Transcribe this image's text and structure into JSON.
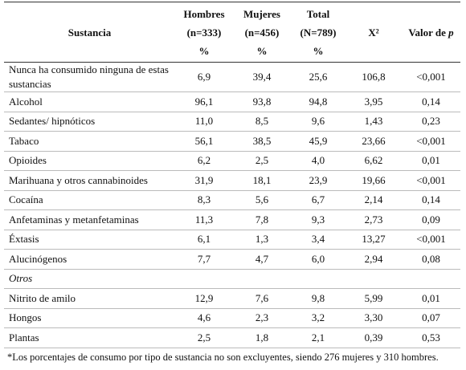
{
  "header": {
    "columns": [
      [
        "Sustancia"
      ],
      [
        "Hombres",
        "(n=333)",
        "%"
      ],
      [
        "Mujeres",
        "(n=456)",
        "%"
      ],
      [
        "Total",
        "(N=789)",
        "%"
      ],
      [
        "X²"
      ],
      [
        "Valor de ",
        "p"
      ]
    ]
  },
  "table": {
    "rows": [
      [
        "Nunca ha consumido ninguna de estas sustancias",
        "6,9",
        "39,4",
        "25,6",
        "106,8",
        "<0,001"
      ],
      [
        "Alcohol",
        "96,1",
        "93,8",
        "94,8",
        "3,95",
        "0,14"
      ],
      [
        "Sedantes/ hipnóticos",
        "11,0",
        "8,5",
        "9,6",
        "1,43",
        "0,23"
      ],
      [
        "Tabaco",
        "56,1",
        "38,5",
        "45,9",
        "23,66",
        "<0,001"
      ],
      [
        "Opioides",
        "6,2",
        "2,5",
        "4,0",
        "6,62",
        "0,01"
      ],
      [
        "Marihuana y otros cannabinoides",
        "31,9",
        "18,1",
        "23,9",
        "19,66",
        "<0,001"
      ],
      [
        "Cocaína",
        "8,3",
        "5,6",
        "6,7",
        "2,14",
        "0,14"
      ],
      [
        "Anfetaminas y metanfetaminas",
        "11,3",
        "7,8",
        "9,3",
        "2,73",
        "0,09"
      ],
      [
        "Éxtasis",
        "6,1",
        "1,3",
        "3,4",
        "13,27",
        "<0,001"
      ],
      [
        "Alucinógenos",
        "7,7",
        "4,7",
        "6,0",
        "2,94",
        "0,08"
      ],
      [
        "Otros"
      ],
      [
        "Nitrito de amilo",
        "12,9",
        "7,6",
        "9,8",
        "5,99",
        "0,01"
      ],
      [
        "Hongos",
        "4,6",
        "2,3",
        "3,2",
        "3,30",
        "0,07"
      ],
      [
        "Plantas",
        "2,5",
        "1,8",
        "2,1",
        "0,39",
        "0,53"
      ]
    ]
  },
  "footnote": "*Los porcentajes de consumo por tipo de sustancia no son excluyentes, siendo 276 mujeres y 310 hombres."
}
